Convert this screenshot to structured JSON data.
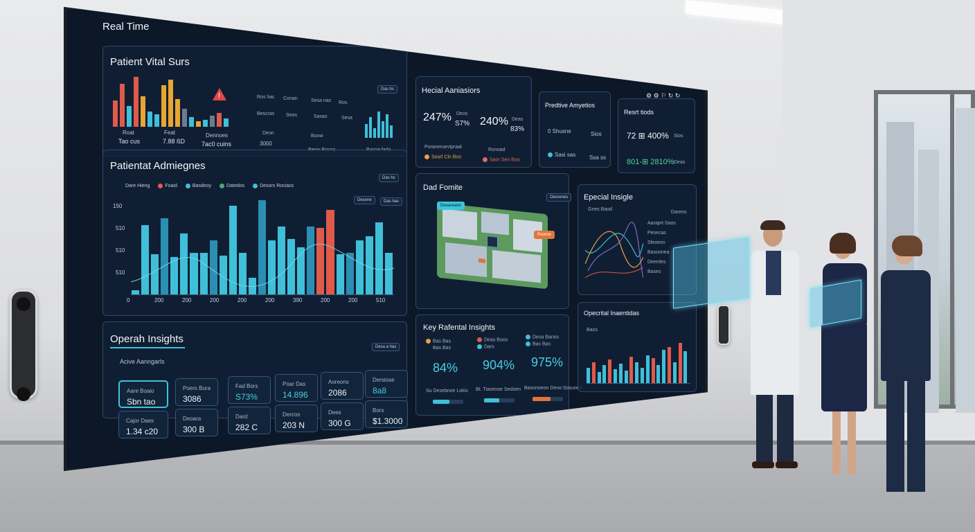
{
  "screen": {
    "title": "Real Time"
  },
  "vitals": {
    "title": "Patient Vital Surs",
    "stats": [
      {
        "label": "Roat",
        "value": "Tao cus"
      },
      {
        "label": "Feat",
        "value": "7.88 ßD"
      },
      {
        "label": "Dennoes",
        "value": "7ac0 cuins"
      }
    ],
    "chip": "Das hs",
    "table_headers": [
      "Ros hac",
      "Conan",
      "Sesa nas",
      "Ros"
    ],
    "table_rows": [
      [
        "Bescras",
        "Seas",
        "Sasas",
        "Sesa"
      ],
      [
        "Deon",
        "Boow",
        "Ras",
        "Seoa"
      ]
    ],
    "sub_value": "3000",
    "footer": "Beow Bosng",
    "right_footer": "Basne farla",
    "colors": {
      "bar_a": "#e05a4a",
      "bar_b": "#e7a531",
      "bar_c": "#3fc0d8",
      "alert": "#e04848"
    }
  },
  "admissions": {
    "title": "Patientat Admiegnes",
    "chip": "Das hs",
    "legend": [
      {
        "label": "Dare Hieng",
        "color": "#8aa2b8"
      },
      {
        "label": "Foaid",
        "color": "#e05a4a"
      },
      {
        "label": "Basdeoy",
        "color": "#3fc0d8"
      },
      {
        "label": "Datedos",
        "color": "#4fa67c"
      },
      {
        "label": "Desors Rociass",
        "color": "#3fc0d8"
      }
    ],
    "buttons": [
      "Desene",
      "Das has"
    ],
    "y_ticks": [
      "150",
      "510",
      "510",
      "510"
    ],
    "x_ticks": [
      "0",
      "200",
      "200",
      "200",
      "200",
      "200",
      "390",
      "200",
      "200",
      "510"
    ]
  },
  "operations": {
    "title": "Operah Insights",
    "chip": "Desa a has",
    "subtitle": "Acive Aanngarls",
    "cards": [
      {
        "label": "Aare Boaio",
        "value": "Sbn tao"
      },
      {
        "label": "Poers Bura",
        "value": "3086"
      },
      {
        "label": "Fad Bors",
        "value": "S73%"
      },
      {
        "label": "Poar Das",
        "value": "14.896"
      },
      {
        "label": "Aoreons",
        "value": "2086"
      },
      {
        "label": "Dersiose",
        "value": "8a8"
      },
      {
        "label": "Cajor Daes",
        "value": "1.34 c20"
      },
      {
        "label": "Deoara",
        "value": "300 B"
      },
      {
        "label": "Dard",
        "value": "282 C"
      },
      {
        "label": "Dercos",
        "value": "203 N"
      },
      {
        "label": "Dees",
        "value": "300 G"
      },
      {
        "label": "Bors",
        "value": "$1.3000"
      }
    ]
  },
  "hospital": {
    "title": "Hecial Aaniasiors",
    "stats": [
      {
        "value": "247%",
        "side1": "Deos",
        "side2": "S7%"
      },
      {
        "value": "240%",
        "side1": "Deas",
        "side2": "83%"
      }
    ],
    "footer1": "Poraneruevtpraal",
    "footer2": "Ronoad",
    "tag1": "Searl Cln Boo",
    "tag2": "Saor Sen Boo"
  },
  "predictive": {
    "title": "Predtive Amyetios",
    "rows": [
      {
        "label": "0 Shusne",
        "value": "Sios"
      },
      {
        "label": "Sasi sas",
        "value": "Ssa ss"
      }
    ]
  },
  "results": {
    "title": "Resrt tiods",
    "icons": "⚙ ⚙ ⚐ ↻ ↻",
    "row1": "72 ⊞ 400%",
    "row2": "801-⊞ 2810%",
    "side1": "Sios",
    "side2": "Deas"
  },
  "floor": {
    "title": "Dad Fomite",
    "chip": "Oeorenes",
    "tag1": "Deoarearel",
    "tag2": "Rouroe"
  },
  "special": {
    "title": "Epecial Insigle",
    "chip1": "Gnes Baod",
    "chip2": "Dareos",
    "rows": [
      "Aaraprt Saos",
      "Pesecas",
      "Sfeoesn",
      "Basoonea",
      "Deerdes",
      "Bases"
    ]
  },
  "key_insights": {
    "title": "Key Rafental Insights",
    "legend": [
      "Bas Bas",
      "Deas Boos",
      "Desa Banos",
      "Bas Bas",
      "Dars",
      "Bas Bas"
    ],
    "values": [
      "84%",
      "904%",
      "975%"
    ],
    "footer": [
      "Su Desebnoe Lokis",
      "Bt. Tiasenoe Sedoen",
      "Basonoeon Deno Sosuons"
    ],
    "progress": [
      0.55,
      0.5,
      0.6
    ]
  },
  "operational": {
    "title": "Opecrital Inaentidas",
    "chip": "Baos"
  }
}
